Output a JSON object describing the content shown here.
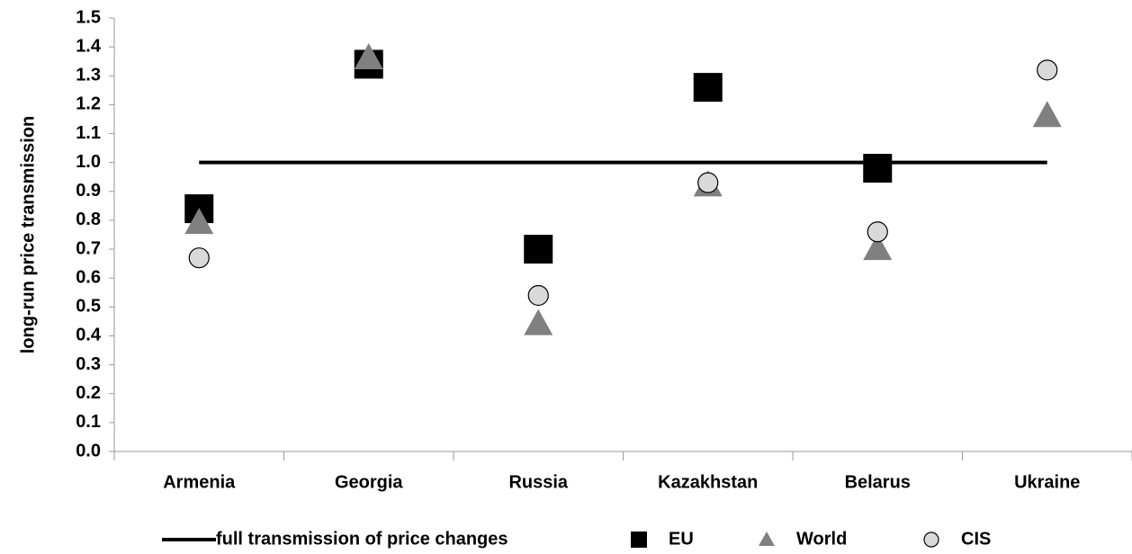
{
  "chart_data": {
    "type": "scatter",
    "y_label": "long-run price transmission",
    "categories": [
      "Armenia",
      "Georgia",
      "Russia",
      "Kazakhstan",
      "Belarus",
      "Ukraine"
    ],
    "ylim": [
      0,
      1.5
    ],
    "yticks": [
      {
        "value": 0,
        "label": "0.0"
      },
      0.1,
      0.2,
      0.3,
      0.4,
      0.5,
      0.6,
      0.7,
      0.8,
      0.9,
      {
        "value": 1,
        "label": "1.0"
      },
      1.1,
      1.2,
      1.3,
      1.4,
      1.5
    ],
    "series": [
      {
        "name": "full transmission of price changes",
        "type": "line",
        "color": "#000000",
        "values": [
          1,
          1,
          1,
          1,
          1,
          1
        ]
      },
      {
        "name": "EU",
        "marker": "square",
        "color": "#000000",
        "values": [
          0.84,
          1.34,
          0.7,
          1.26,
          0.98,
          null
        ]
      },
      {
        "name": "World",
        "marker": "triangle",
        "color": "#808080",
        "values": [
          0.79,
          1.36,
          0.44,
          0.92,
          0.7,
          1.16
        ]
      },
      {
        "name": "CIS",
        "marker": "circle",
        "color": "#d9d9d9",
        "values": [
          0.67,
          null,
          0.54,
          0.93,
          0.76,
          1.32
        ]
      }
    ],
    "legend": "bottom"
  }
}
